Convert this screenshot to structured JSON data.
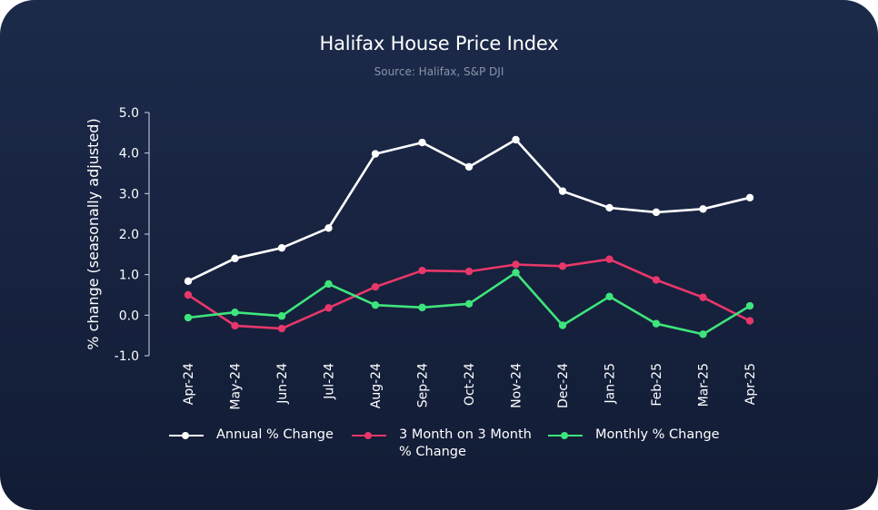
{
  "chart_data": {
    "type": "line",
    "title": "Halifax House Price Index",
    "subtitle": "Source: Halifax, S&P DJI",
    "xlabel": "",
    "ylabel": "% change (seasonally adjusted)",
    "ylim": [
      -1.0,
      5.0
    ],
    "yticks": [
      -1.0,
      0.0,
      1.0,
      2.0,
      3.0,
      4.0,
      5.0
    ],
    "ytick_labels": [
      "-1.0",
      "0.0",
      "1.0",
      "2.0",
      "3.0",
      "4.0",
      "5.0"
    ],
    "categories": [
      "Apr-24",
      "May-24",
      "Jun-24",
      "Jul-24",
      "Aug-24",
      "Sep-24",
      "Oct-24",
      "Nov-24",
      "Dec-24",
      "Jan-25",
      "Feb-25",
      "Mar-25",
      "Apr-25"
    ],
    "legend_position": "bottom",
    "series": [
      {
        "name": "Annual % Change",
        "legend_lines": [
          "Annual % Change"
        ],
        "color": "#ffffff",
        "values": [
          0.84,
          1.4,
          1.66,
          2.15,
          3.98,
          4.26,
          3.66,
          4.33,
          3.06,
          2.65,
          2.54,
          2.62,
          2.9
        ]
      },
      {
        "name": "3 Month on 3 Month % Change",
        "legend_lines": [
          "3 Month on 3 Month",
          "% Change"
        ],
        "color": "#e8376a",
        "values": [
          0.5,
          -0.26,
          -0.33,
          0.18,
          0.7,
          1.1,
          1.08,
          1.25,
          1.21,
          1.38,
          0.87,
          0.44,
          -0.14
        ]
      },
      {
        "name": "Monthly % Change",
        "legend_lines": [
          "Monthly % Change"
        ],
        "color": "#3ee57c",
        "values": [
          -0.06,
          0.07,
          -0.02,
          0.77,
          0.25,
          0.19,
          0.28,
          1.05,
          -0.25,
          0.46,
          -0.21,
          -0.47,
          0.23
        ]
      }
    ]
  }
}
